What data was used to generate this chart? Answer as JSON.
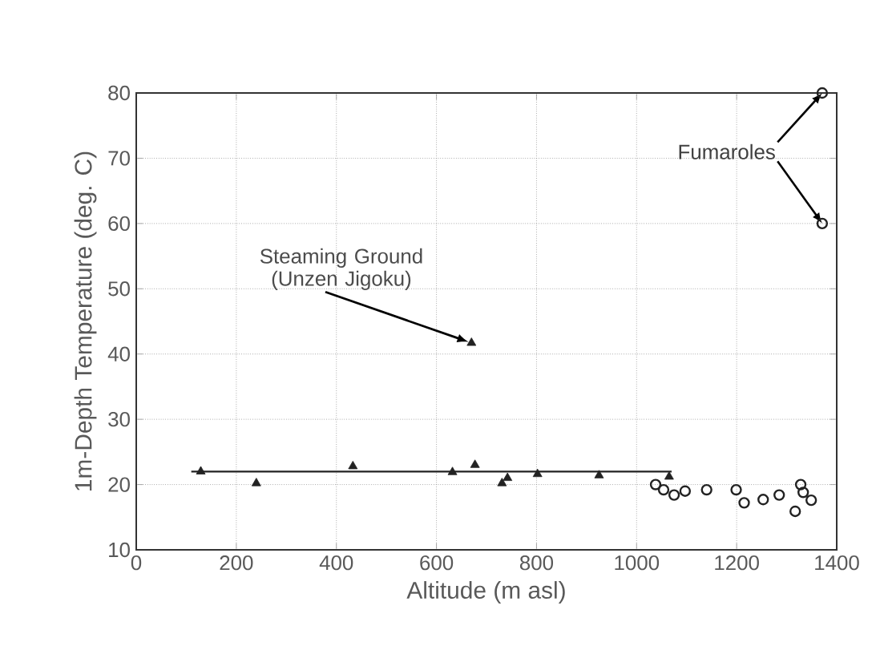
{
  "chart_data": {
    "type": "scatter",
    "xlabel": "Altitude (m asl)",
    "ylabel": "1m-Depth Temperature (deg. C)",
    "xlim": [
      0,
      1400
    ],
    "ylim": [
      10,
      80
    ],
    "xticks": [
      0,
      200,
      400,
      600,
      800,
      1000,
      1200,
      1400
    ],
    "yticks": [
      10,
      20,
      30,
      40,
      50,
      60,
      70,
      80
    ],
    "grid": true,
    "series": [
      {
        "color": "#222222",
        "marker": "triangle",
        "x": [
          129,
          240,
          433,
          632,
          670,
          677,
          731,
          742,
          802,
          925,
          1065
        ],
        "values": [
          22,
          20.2,
          22.8,
          21.9,
          41.7,
          23,
          20.2,
          21,
          21.6,
          21.4,
          21.2
        ]
      },
      {
        "color": "#222222",
        "marker": "circle",
        "x": [
          1038,
          1054,
          1075,
          1097,
          1140,
          1199,
          1215,
          1253,
          1285,
          1317,
          1328,
          1333,
          1349,
          1371,
          1371
        ],
        "values": [
          20,
          19.2,
          18.4,
          19,
          19.2,
          19.2,
          17.2,
          17.7,
          18.4,
          15.9,
          20,
          18.8,
          17.6,
          80,
          60
        ]
      },
      {
        "type": "line",
        "color": "#222222",
        "x": [
          110,
          1070
        ],
        "values": [
          22,
          22
        ]
      }
    ],
    "annotations": [
      {
        "text": "Steaming Ground (Unzen Jigoku)",
        "x": 670,
        "y": 41.7
      },
      {
        "text": "Fumaroles",
        "x": 1371,
        "y": 80
      }
    ]
  }
}
